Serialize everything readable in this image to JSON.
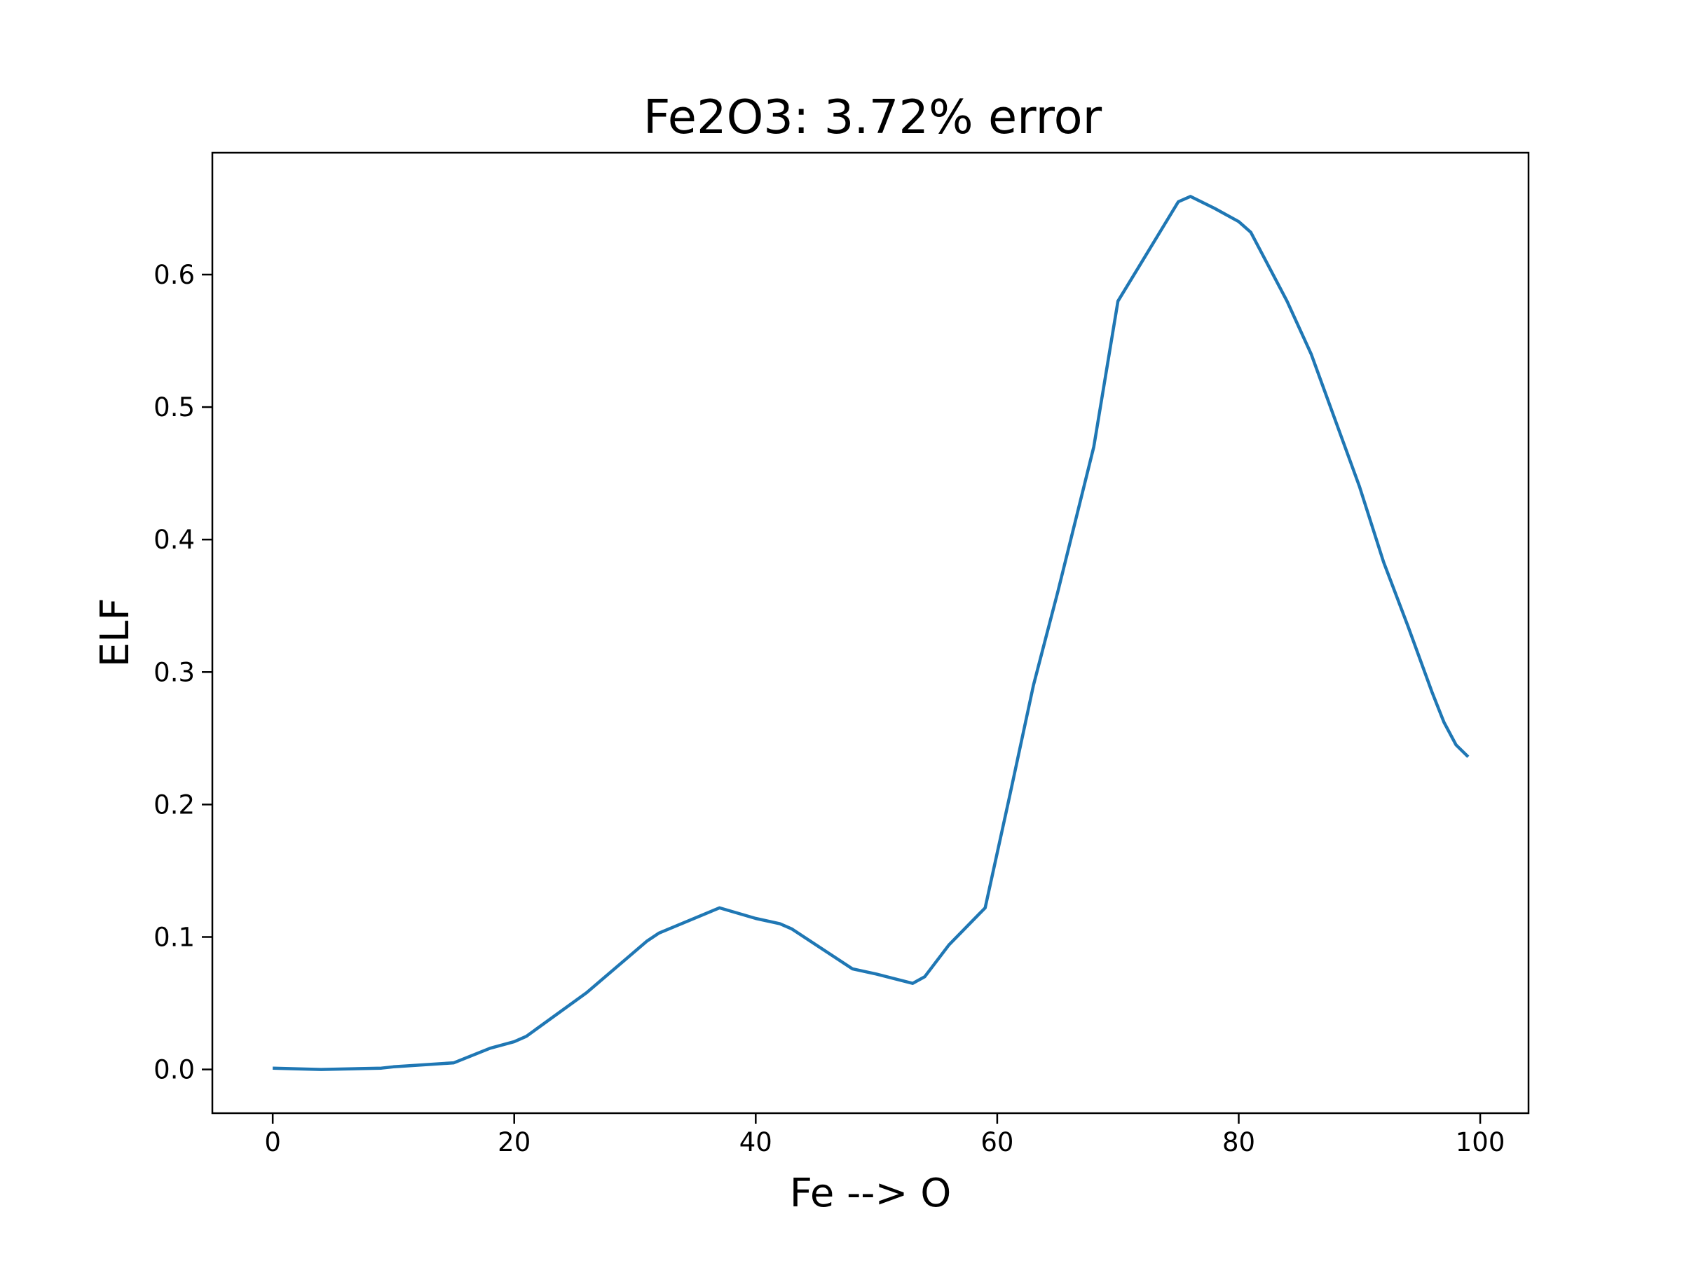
{
  "chart_data": {
    "type": "line",
    "title": "Fe2O3: 3.72% error",
    "xlabel": "Fe --> O",
    "ylabel": "ELF",
    "xlim": [
      -5,
      104
    ],
    "ylim": [
      -0.033,
      0.692
    ],
    "grid": false,
    "legend": "none",
    "xticks": [
      0,
      20,
      40,
      60,
      80,
      100
    ],
    "xtick_labels": [
      "0",
      "20",
      "40",
      "60",
      "80",
      "100"
    ],
    "yticks": [
      0.0,
      0.1,
      0.2,
      0.3,
      0.4,
      0.5,
      0.6
    ],
    "ytick_labels": [
      "0.0",
      "0.1",
      "0.2",
      "0.3",
      "0.4",
      "0.5",
      "0.6"
    ],
    "line_color": "#1f77b4",
    "series": [
      {
        "x": [
          0,
          4,
          9,
          10,
          15,
          18,
          20,
          21,
          26,
          31,
          32,
          37,
          40,
          42,
          43,
          48,
          50,
          53,
          54,
          56,
          59,
          61,
          63,
          64,
          65,
          68,
          70,
          72,
          75,
          76,
          78,
          80,
          81,
          84,
          86,
          87,
          90,
          92,
          94,
          96,
          97,
          98,
          99
        ],
        "y": [
          0.001,
          0.0,
          0.001,
          0.002,
          0.005,
          0.016,
          0.021,
          0.025,
          0.058,
          0.097,
          0.103,
          0.122,
          0.114,
          0.11,
          0.106,
          0.076,
          0.072,
          0.065,
          0.07,
          0.094,
          0.122,
          0.205,
          0.29,
          0.325,
          0.36,
          0.47,
          0.58,
          0.61,
          0.655,
          0.659,
          0.65,
          0.64,
          0.632,
          0.58,
          0.54,
          0.515,
          0.44,
          0.383,
          0.335,
          0.285,
          0.262,
          0.245,
          0.236
        ]
      }
    ]
  }
}
